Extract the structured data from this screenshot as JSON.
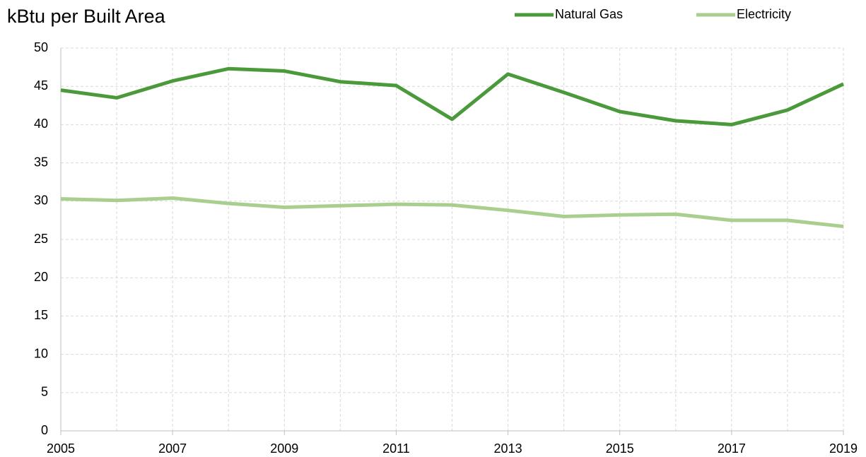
{
  "chart_data": {
    "type": "line",
    "title": "kBtu per Built Area",
    "x": [
      2005,
      2006,
      2007,
      2008,
      2009,
      2010,
      2011,
      2012,
      2013,
      2014,
      2015,
      2016,
      2017,
      2018,
      2019
    ],
    "series": [
      {
        "name": "Natural Gas",
        "color": "#4a9a3c",
        "values": [
          44.5,
          43.5,
          45.7,
          47.3,
          47.0,
          45.6,
          45.1,
          40.7,
          46.6,
          44.2,
          41.7,
          40.5,
          40.0,
          41.9,
          45.3
        ]
      },
      {
        "name": "Electricity",
        "color": "#a9cf8f",
        "values": [
          30.3,
          30.1,
          30.4,
          29.7,
          29.2,
          29.4,
          29.6,
          29.5,
          28.8,
          28.0,
          28.2,
          28.3,
          27.5,
          27.5,
          26.7
        ]
      }
    ],
    "xlim": [
      2005,
      2019
    ],
    "xticks": [
      2005,
      2007,
      2009,
      2011,
      2013,
      2015,
      2017,
      2019
    ],
    "ylim": [
      0,
      50
    ],
    "yticks": [
      0,
      5,
      10,
      15,
      20,
      25,
      30,
      35,
      40,
      45,
      50
    ],
    "grid": true,
    "legend": "top-right"
  }
}
